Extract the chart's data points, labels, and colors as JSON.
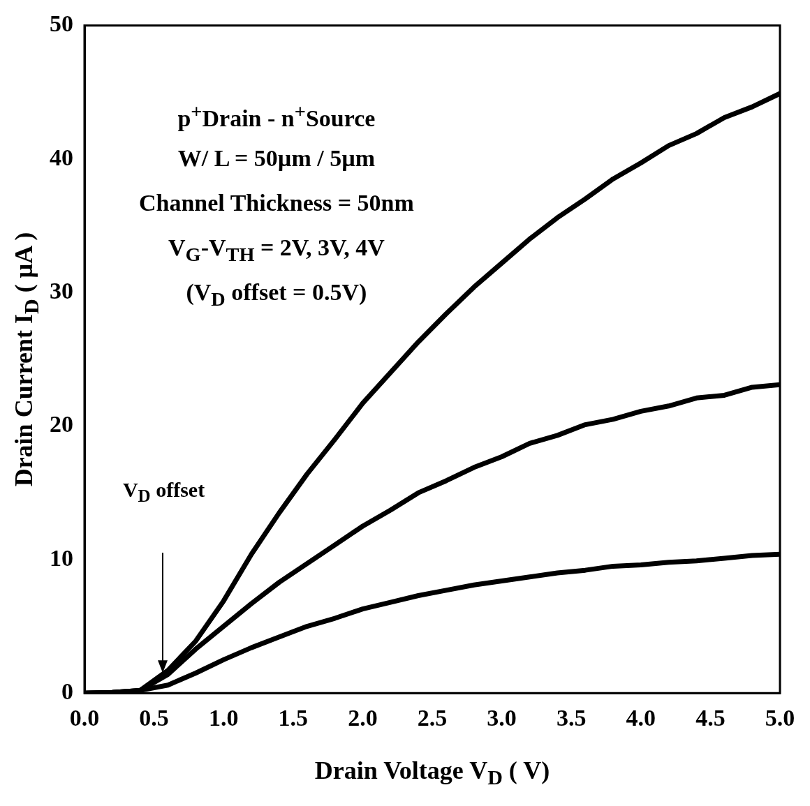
{
  "chart_data": {
    "type": "line",
    "xlabel": "Drain Voltage V$_{D}$ ( V)",
    "ylabel": "Drain Current I$_{D}$ ( µA )",
    "annotations": [
      "p$^{+}$Drain - n$^{+}$Source",
      "W/ L = 50µm / 5µm",
      "Channel Thickness = 50nm",
      "V$_{G}$-V$_{TH}$ = 2V, 3V, 4V",
      "(V$_{D}$ offset  = 0.5V)",
      "V$_{D}$ offset"
    ],
    "x": [
      0,
      0.2,
      0.4,
      0.6,
      0.8,
      1.0,
      1.2,
      1.4,
      1.6,
      1.8,
      2.0,
      2.2,
      2.4,
      2.6,
      2.8,
      3.0,
      3.2,
      3.4,
      3.6,
      3.8,
      4.0,
      4.2,
      4.4,
      4.6,
      4.8,
      5.0
    ],
    "series": [
      {
        "color": "#000000",
        "values": [
          0,
          0.05,
          0.2,
          1.7,
          3.9,
          6.9,
          10.4,
          13.5,
          16.4,
          19.0,
          21.7,
          24.0,
          26.3,
          28.4,
          30.4,
          32.2,
          34.0,
          35.6,
          37.0,
          38.5,
          39.7,
          41.0,
          41.9,
          43.1,
          43.9,
          44.9
        ]
      },
      {
        "color": "#000000",
        "values": [
          0,
          0.05,
          0.2,
          1.4,
          3.3,
          5.0,
          6.7,
          8.3,
          9.7,
          11.1,
          12.5,
          13.7,
          15.0,
          15.9,
          16.9,
          17.7,
          18.7,
          19.3,
          20.1,
          20.5,
          21.1,
          21.5,
          22.1,
          22.3,
          22.9,
          23.1
        ]
      },
      {
        "color": "#000000",
        "values": [
          0,
          0.05,
          0.2,
          0.6,
          1.5,
          2.5,
          3.4,
          4.2,
          5.0,
          5.6,
          6.3,
          6.8,
          7.3,
          7.7,
          8.1,
          8.4,
          8.7,
          9.0,
          9.2,
          9.5,
          9.6,
          9.8,
          9.9,
          10.1,
          10.3,
          10.4
        ]
      }
    ],
    "xlim": [
      0,
      5
    ],
    "xticks": [
      {
        "value": 0,
        "label": "0.0"
      },
      0.5,
      {
        "value": 1,
        "label": "1.0"
      },
      1.5,
      {
        "value": 2,
        "label": "2.0"
      },
      2.5,
      {
        "value": 3,
        "label": "3.0"
      },
      3.5,
      {
        "value": 4,
        "label": "4.0"
      },
      4.5,
      {
        "value": 5,
        "label": "5.0"
      }
    ],
    "ylim": [
      0,
      50
    ],
    "yticks": [
      0,
      10,
      20,
      30,
      40,
      50
    ],
    "grid": false,
    "legend": false,
    "marker": "none",
    "line_style": "solid"
  }
}
